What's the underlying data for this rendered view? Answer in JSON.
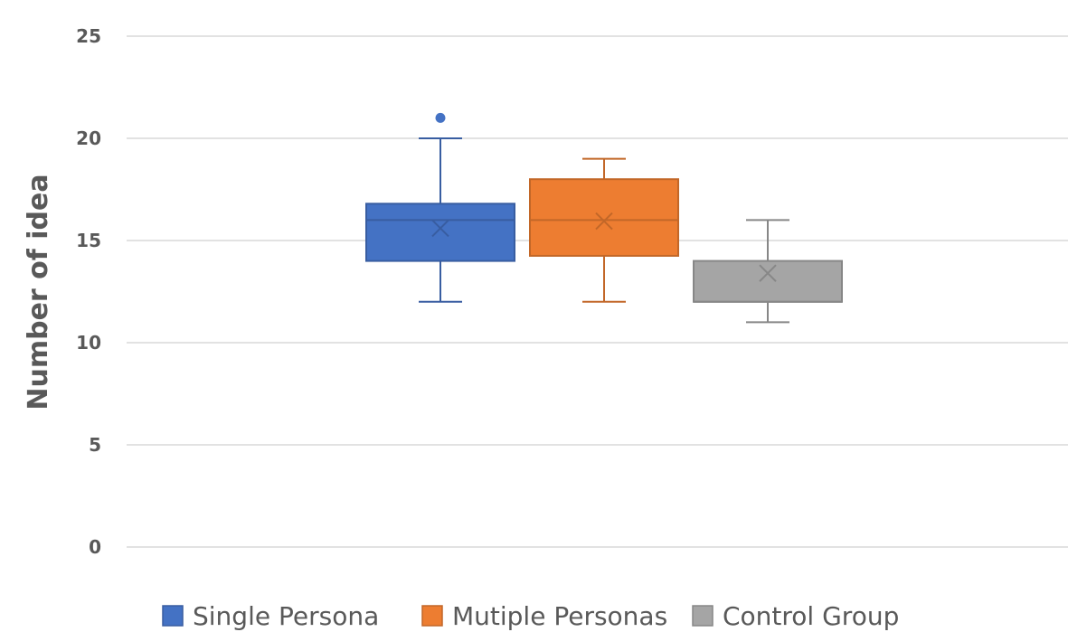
{
  "chart_data": {
    "type": "box",
    "ylabel": "Number of idea",
    "ylim": [
      0,
      25
    ],
    "y_ticks": [
      0,
      5,
      10,
      15,
      20,
      25
    ],
    "grid": true,
    "legend_position": "bottom",
    "series": [
      {
        "name": "Single Persona",
        "color": "#4472C4",
        "min": 12,
        "q1": 14,
        "median": 16,
        "q3": 16.8,
        "max": 20,
        "mean": 15.6,
        "outliers": [
          21
        ]
      },
      {
        "name": "Mutiple Personas",
        "color": "#ED7D31",
        "min": 12,
        "q1": 14.25,
        "median": 16,
        "q3": 18,
        "max": 19,
        "mean": 15.95,
        "outliers": []
      },
      {
        "name": "Control Group",
        "color": "#A5A5A5",
        "min": 11,
        "q1": 12,
        "median": 12,
        "q3": 14,
        "max": 16,
        "mean": 13.4,
        "outliers": []
      }
    ]
  }
}
